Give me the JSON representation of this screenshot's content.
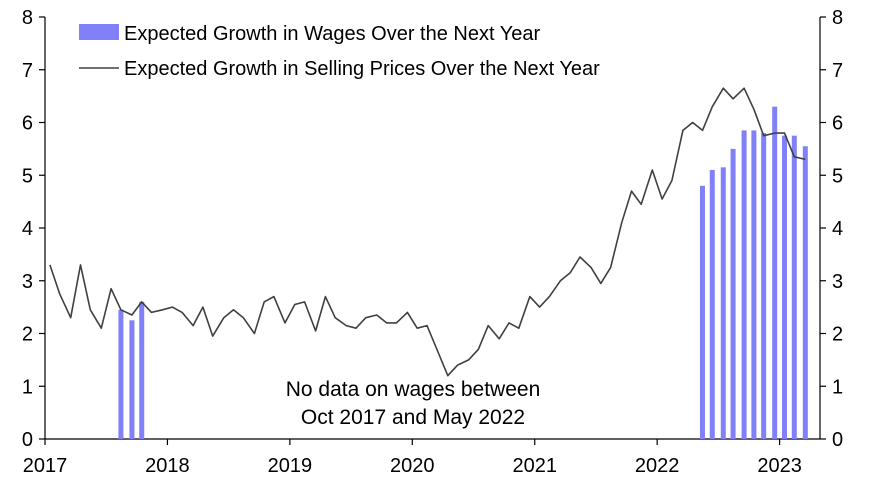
{
  "chart_data": {
    "type": "bar+line",
    "title": "",
    "xlabel": "",
    "ylabel": "",
    "ylim": [
      0,
      8
    ],
    "xlim": [
      2017.0,
      2023.33
    ],
    "y_ticks": [
      0,
      1,
      2,
      3,
      4,
      5,
      6,
      7,
      8
    ],
    "x_ticks": [
      2017,
      2018,
      2019,
      2020,
      2021,
      2022,
      2023
    ],
    "grid": false,
    "legend_position": "top-left",
    "colors": {
      "bars": "#8080f8",
      "line": "#404040",
      "axis": "#000000"
    },
    "annotation": [
      "No data on wages between",
      "Oct 2017 and May 2022"
    ],
    "series": [
      {
        "name": "Expected Growth in Wages Over the Next Year",
        "kind": "bar",
        "x": [
          2017.62,
          2017.71,
          2017.79,
          2022.37,
          2022.45,
          2022.54,
          2022.62,
          2022.71,
          2022.79,
          2022.87,
          2022.96,
          2023.04,
          2023.12,
          2023.21
        ],
        "values": [
          2.45,
          2.25,
          2.6,
          4.8,
          5.1,
          5.15,
          5.5,
          5.85,
          5.85,
          5.8,
          6.3,
          5.75,
          5.75,
          5.55
        ]
      },
      {
        "name": "Expected Growth in Selling Prices Over the Next Year",
        "kind": "line",
        "x": [
          2017.04,
          2017.12,
          2017.21,
          2017.29,
          2017.37,
          2017.46,
          2017.54,
          2017.62,
          2017.71,
          2017.79,
          2017.87,
          2017.96,
          2018.04,
          2018.12,
          2018.21,
          2018.29,
          2018.37,
          2018.46,
          2018.54,
          2018.62,
          2018.71,
          2018.79,
          2018.87,
          2018.96,
          2019.04,
          2019.12,
          2019.21,
          2019.29,
          2019.37,
          2019.46,
          2019.54,
          2019.62,
          2019.71,
          2019.79,
          2019.87,
          2019.96,
          2020.04,
          2020.12,
          2020.21,
          2020.29,
          2020.37,
          2020.46,
          2020.54,
          2020.62,
          2020.71,
          2020.79,
          2020.87,
          2020.96,
          2021.04,
          2021.12,
          2021.21,
          2021.29,
          2021.37,
          2021.46,
          2021.54,
          2021.62,
          2021.71,
          2021.79,
          2021.87,
          2021.96,
          2022.04,
          2022.12,
          2022.21,
          2022.29,
          2022.37,
          2022.45,
          2022.54,
          2022.62,
          2022.71,
          2022.79,
          2022.87,
          2022.96,
          2023.04,
          2023.12,
          2023.21
        ],
        "values": [
          3.3,
          2.75,
          2.3,
          3.3,
          2.45,
          2.1,
          2.85,
          2.45,
          2.35,
          2.6,
          2.4,
          2.45,
          2.5,
          2.4,
          2.15,
          2.5,
          1.95,
          2.3,
          2.45,
          2.3,
          2.0,
          2.6,
          2.7,
          2.2,
          2.55,
          2.6,
          2.05,
          2.7,
          2.3,
          2.15,
          2.1,
          2.3,
          2.35,
          2.2,
          2.2,
          2.4,
          2.1,
          2.15,
          1.65,
          1.2,
          1.4,
          1.5,
          1.7,
          2.15,
          1.9,
          2.2,
          2.1,
          2.7,
          2.5,
          2.7,
          3.0,
          3.15,
          3.45,
          3.25,
          2.95,
          3.25,
          4.1,
          4.7,
          4.45,
          5.1,
          4.55,
          4.9,
          5.85,
          6.0,
          5.85,
          6.3,
          6.65,
          6.45,
          6.65,
          6.25,
          5.75,
          5.8,
          5.8,
          5.35,
          5.3
        ]
      }
    ]
  }
}
